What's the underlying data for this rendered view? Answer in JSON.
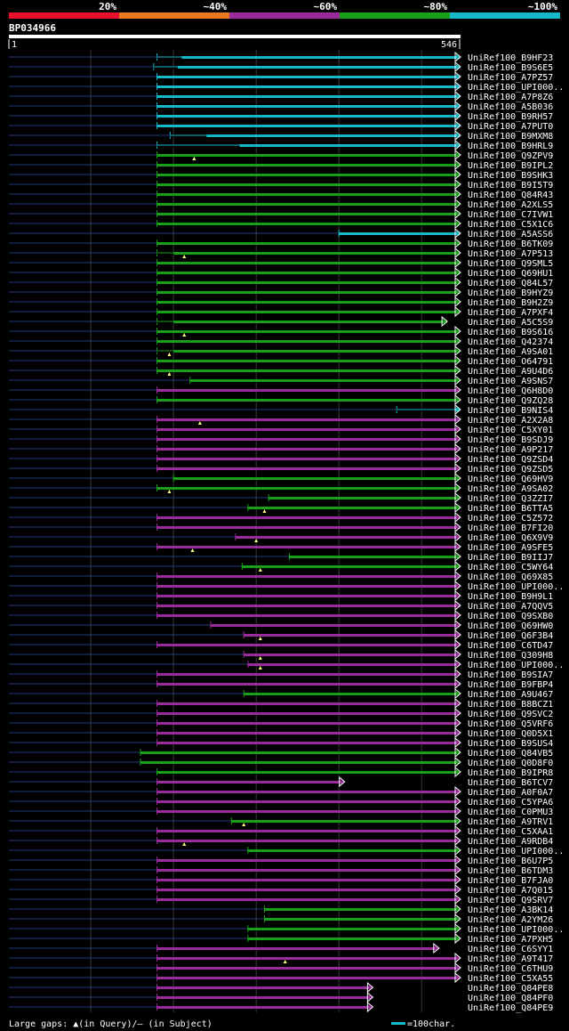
{
  "query": {
    "name": "BP034966",
    "start": "1",
    "end": "546",
    "length": 546
  },
  "scale_bar": [
    {
      "label": "20%",
      "color": "#e8112d"
    },
    {
      "label": "~40%",
      "color": "#e87722"
    },
    {
      "label": "~60%",
      "color": "#9b2a9b"
    },
    {
      "label": "~80%",
      "color": "#18a018"
    },
    {
      "label": "~100%",
      "color": "#16b8c8"
    }
  ],
  "colors": {
    "query_line": "#ffffff",
    "gap_line": "#1f3a7a",
    "grid": "#3a3a3a",
    "marker": "#ffff88",
    "arrow": "#ffffff"
  },
  "footer": {
    "legend_text": "Large gaps: ▲(in Query)/— (in Subject)",
    "scale_text": "=100char.",
    "scale_color": "#16b8c8"
  },
  "chart_data": {
    "type": "alignment-overview",
    "x_range": [
      1,
      546
    ],
    "hits": [
      {
        "name": "UniRef100_B9HF23",
        "start": 180,
        "end": 546,
        "color": "#16b8c8",
        "thin": [
          [
            180,
            210
          ]
        ],
        "marker": null,
        "arrow": true
      },
      {
        "name": "UniRef100_B9S6E5",
        "start": 176,
        "end": 546,
        "color": "#16b8c8",
        "thin": [
          [
            176,
            205
          ]
        ],
        "marker": null,
        "arrow": true
      },
      {
        "name": "UniRef100_A7PZ57",
        "start": 180,
        "end": 546,
        "color": "#16b8c8",
        "thin": [],
        "marker": null,
        "arrow": true
      },
      {
        "name": "UniRef100_UPI000..",
        "start": 180,
        "end": 546,
        "color": "#16b8c8",
        "thin": [],
        "marker": null,
        "arrow": true
      },
      {
        "name": "UniRef100_A7P8Z6",
        "start": 180,
        "end": 546,
        "color": "#16b8c8",
        "thin": [],
        "marker": null,
        "arrow": true
      },
      {
        "name": "UniRef100_A5B036",
        "start": 180,
        "end": 546,
        "color": "#16b8c8",
        "thin": [],
        "marker": null,
        "arrow": true
      },
      {
        "name": "UniRef100_B9RH57",
        "start": 180,
        "end": 546,
        "color": "#16b8c8",
        "thin": [],
        "marker": null,
        "arrow": true
      },
      {
        "name": "UniRef100_A7PUT0",
        "start": 180,
        "end": 546,
        "color": "#16b8c8",
        "thin": [],
        "marker": null,
        "arrow": true
      },
      {
        "name": "UniRef100_B9MXM8",
        "start": 196,
        "end": 546,
        "color": "#16b8c8",
        "thin": [
          [
            196,
            240
          ]
        ],
        "marker": null,
        "arrow": true
      },
      {
        "name": "UniRef100_B9HRL9",
        "start": 180,
        "end": 546,
        "color": "#16b8c8",
        "thin": [
          [
            180,
            280
          ]
        ],
        "marker": null,
        "arrow": true
      },
      {
        "name": "UniRef100_Q9ZPV9",
        "start": 180,
        "end": 546,
        "color": "#18a018",
        "thin": [],
        "marker": 225,
        "arrow": true
      },
      {
        "name": "UniRef100_B9IPL2",
        "start": 180,
        "end": 546,
        "color": "#18a018",
        "thin": [],
        "marker": null,
        "arrow": true
      },
      {
        "name": "UniRef100_B9SHK3",
        "start": 180,
        "end": 546,
        "color": "#18a018",
        "thin": [],
        "marker": null,
        "arrow": true
      },
      {
        "name": "UniRef100_B9I5T9",
        "start": 180,
        "end": 546,
        "color": "#18a018",
        "thin": [],
        "marker": null,
        "arrow": true
      },
      {
        "name": "UniRef100_Q84R43",
        "start": 180,
        "end": 546,
        "color": "#18a018",
        "thin": [],
        "marker": null,
        "arrow": true
      },
      {
        "name": "UniRef100_A2XLS5",
        "start": 180,
        "end": 546,
        "color": "#18a018",
        "thin": [],
        "marker": null,
        "arrow": true
      },
      {
        "name": "UniRef100_C7IVW1",
        "start": 180,
        "end": 546,
        "color": "#18a018",
        "thin": [],
        "marker": null,
        "arrow": true
      },
      {
        "name": "UniRef100_C5X1C6",
        "start": 180,
        "end": 546,
        "color": "#18a018",
        "thin": [],
        "marker": null,
        "arrow": true
      },
      {
        "name": "UniRef100_A5ASS6",
        "start": 400,
        "end": 546,
        "color": "#16b8c8",
        "thin": [],
        "marker": null,
        "arrow": true
      },
      {
        "name": "UniRef100_B6TK09",
        "start": 180,
        "end": 546,
        "color": "#18a018",
        "thin": [],
        "marker": null,
        "arrow": true
      },
      {
        "name": "UniRef100_A7P513",
        "start": 180,
        "end": 546,
        "color": "#18a018",
        "thin": [
          [
            180,
            200
          ]
        ],
        "marker": 213,
        "arrow": true
      },
      {
        "name": "UniRef100_Q9SML5",
        "start": 180,
        "end": 546,
        "color": "#18a018",
        "thin": [],
        "marker": null,
        "arrow": true
      },
      {
        "name": "UniRef100_Q69HU1",
        "start": 180,
        "end": 546,
        "color": "#18a018",
        "thin": [],
        "marker": null,
        "arrow": true
      },
      {
        "name": "UniRef100_Q84L57",
        "start": 180,
        "end": 546,
        "color": "#18a018",
        "thin": [],
        "marker": null,
        "arrow": true
      },
      {
        "name": "UniRef100_B9HYZ9",
        "start": 180,
        "end": 546,
        "color": "#18a018",
        "thin": [],
        "marker": null,
        "arrow": true
      },
      {
        "name": "UniRef100_B9H2Z9",
        "start": 180,
        "end": 546,
        "color": "#18a018",
        "thin": [],
        "marker": null,
        "arrow": true
      },
      {
        "name": "UniRef100_A7PXF4",
        "start": 180,
        "end": 546,
        "color": "#18a018",
        "thin": [],
        "marker": null,
        "arrow": true
      },
      {
        "name": "UniRef100_A5C5S9",
        "start": 180,
        "end": 530,
        "color": "#18a018",
        "thin": [
          [
            180,
            200
          ]
        ],
        "marker": null,
        "arrow": true
      },
      {
        "name": "UniRef100_B9S616",
        "start": 180,
        "end": 546,
        "color": "#18a018",
        "thin": [],
        "marker": 213,
        "arrow": true
      },
      {
        "name": "UniRef100_Q42374",
        "start": 180,
        "end": 546,
        "color": "#18a018",
        "thin": [],
        "marker": null,
        "arrow": true
      },
      {
        "name": "UniRef100_A9SA01",
        "start": 180,
        "end": 546,
        "color": "#18a018",
        "thin": [
          [
            180,
            200
          ]
        ],
        "marker": 195,
        "arrow": true
      },
      {
        "name": "UniRef100_O64791",
        "start": 180,
        "end": 546,
        "color": "#18a018",
        "thin": [],
        "marker": null,
        "arrow": true
      },
      {
        "name": "UniRef100_A9U4D6",
        "start": 180,
        "end": 546,
        "color": "#18a018",
        "thin": [],
        "marker": 195,
        "arrow": true
      },
      {
        "name": "UniRef100_A9SNS7",
        "start": 220,
        "end": 546,
        "color": "#18a018",
        "thin": [],
        "marker": null,
        "arrow": true
      },
      {
        "name": "UniRef100_Q6H8D0",
        "start": 180,
        "end": 546,
        "color": "#9b2a9b",
        "thin": [],
        "marker": null,
        "arrow": true
      },
      {
        "name": "UniRef100_Q9ZQ28",
        "start": 180,
        "end": 546,
        "color": "#18a018",
        "thin": [],
        "marker": null,
        "arrow": true
      },
      {
        "name": "UniRef100_B9NIS4",
        "start": 470,
        "end": 546,
        "color": "#16b8c8",
        "thin": [
          [
            470,
            540
          ]
        ],
        "marker": null,
        "arrow": true
      },
      {
        "name": "UniRef100_A2X2A8",
        "start": 180,
        "end": 546,
        "color": "#9b2a9b",
        "thin": [],
        "marker": 232,
        "arrow": true
      },
      {
        "name": "UniRef100_C5XY01",
        "start": 180,
        "end": 546,
        "color": "#9b2a9b",
        "thin": [],
        "marker": null,
        "arrow": true
      },
      {
        "name": "UniRef100_B9SDJ9",
        "start": 180,
        "end": 546,
        "color": "#9b2a9b",
        "thin": [],
        "marker": null,
        "arrow": true
      },
      {
        "name": "UniRef100_A9P217",
        "start": 180,
        "end": 546,
        "color": "#9b2a9b",
        "thin": [],
        "marker": null,
        "arrow": true
      },
      {
        "name": "UniRef100_Q9ZSD4",
        "start": 180,
        "end": 546,
        "color": "#9b2a9b",
        "thin": [],
        "marker": null,
        "arrow": true
      },
      {
        "name": "UniRef100_Q9ZSD5",
        "start": 180,
        "end": 546,
        "color": "#9b2a9b",
        "thin": [],
        "marker": null,
        "arrow": true
      },
      {
        "name": "UniRef100_Q69HV9",
        "start": 200,
        "end": 546,
        "color": "#18a018",
        "thin": [],
        "marker": null,
        "arrow": true
      },
      {
        "name": "UniRef100_A9SA02",
        "start": 180,
        "end": 546,
        "color": "#18a018",
        "thin": [],
        "marker": 195,
        "arrow": true
      },
      {
        "name": "UniRef100_Q3ZZI7",
        "start": 315,
        "end": 546,
        "color": "#18a018",
        "thin": [],
        "marker": null,
        "arrow": true
      },
      {
        "name": "UniRef100_B6TTA5",
        "start": 290,
        "end": 546,
        "color": "#18a018",
        "thin": [],
        "marker": 310,
        "arrow": true
      },
      {
        "name": "UniRef100_C5Z572",
        "start": 180,
        "end": 546,
        "color": "#9b2a9b",
        "thin": [],
        "marker": null,
        "arrow": true
      },
      {
        "name": "UniRef100_B7FI20",
        "start": 180,
        "end": 546,
        "color": "#9b2a9b",
        "thin": [],
        "marker": null,
        "arrow": true
      },
      {
        "name": "UniRef100_Q6X9V9",
        "start": 275,
        "end": 546,
        "color": "#9b2a9b",
        "thin": [],
        "marker": 300,
        "arrow": true
      },
      {
        "name": "UniRef100_A9SFE5",
        "start": 180,
        "end": 546,
        "color": "#9b2a9b",
        "thin": [],
        "marker": 223,
        "arrow": true
      },
      {
        "name": "UniRef100_B9IIJ7",
        "start": 340,
        "end": 546,
        "color": "#18a018",
        "thin": [],
        "marker": null,
        "arrow": true
      },
      {
        "name": "UniRef100_C5WY64",
        "start": 283,
        "end": 546,
        "color": "#18a018",
        "thin": [],
        "marker": 305,
        "arrow": true
      },
      {
        "name": "UniRef100_Q69X85",
        "start": 180,
        "end": 546,
        "color": "#9b2a9b",
        "thin": [],
        "marker": null,
        "arrow": true
      },
      {
        "name": "UniRef100_UPI000..",
        "start": 180,
        "end": 546,
        "color": "#9b2a9b",
        "thin": [],
        "marker": null,
        "arrow": true
      },
      {
        "name": "UniRef100_B9H9L1",
        "start": 180,
        "end": 546,
        "color": "#9b2a9b",
        "thin": [],
        "marker": null,
        "arrow": true
      },
      {
        "name": "UniRef100_A7QQV5",
        "start": 180,
        "end": 546,
        "color": "#9b2a9b",
        "thin": [],
        "marker": null,
        "arrow": true
      },
      {
        "name": "UniRef100_Q9SXB0",
        "start": 180,
        "end": 546,
        "color": "#9b2a9b",
        "thin": [],
        "marker": null,
        "arrow": true
      },
      {
        "name": "UniRef100_Q69HW0",
        "start": 245,
        "end": 546,
        "color": "#9b2a9b",
        "thin": [],
        "marker": null,
        "arrow": true
      },
      {
        "name": "UniRef100_Q6F3B4",
        "start": 285,
        "end": 546,
        "color": "#9b2a9b",
        "thin": [],
        "marker": 305,
        "arrow": true
      },
      {
        "name": "UniRef100_C6TD47",
        "start": 180,
        "end": 546,
        "color": "#9b2a9b",
        "thin": [],
        "marker": null,
        "arrow": true
      },
      {
        "name": "UniRef100_Q309H8",
        "start": 285,
        "end": 546,
        "color": "#9b2a9b",
        "thin": [],
        "marker": 305,
        "arrow": true
      },
      {
        "name": "UniRef100_UPI000..",
        "start": 290,
        "end": 546,
        "color": "#9b2a9b",
        "thin": [],
        "marker": 305,
        "arrow": true
      },
      {
        "name": "UniRef100_B9SIA7",
        "start": 180,
        "end": 546,
        "color": "#9b2a9b",
        "thin": [],
        "marker": null,
        "arrow": true
      },
      {
        "name": "UniRef100_B9FBP4",
        "start": 180,
        "end": 546,
        "color": "#9b2a9b",
        "thin": [],
        "marker": null,
        "arrow": true
      },
      {
        "name": "UniRef100_A9U467",
        "start": 285,
        "end": 546,
        "color": "#18a018",
        "thin": [],
        "marker": null,
        "arrow": true
      },
      {
        "name": "UniRef100_B8BCZ1",
        "start": 180,
        "end": 546,
        "color": "#9b2a9b",
        "thin": [],
        "marker": null,
        "arrow": true
      },
      {
        "name": "UniRef100_Q9SVC2",
        "start": 180,
        "end": 546,
        "color": "#9b2a9b",
        "thin": [],
        "marker": null,
        "arrow": true
      },
      {
        "name": "UniRef100_Q5VRF6",
        "start": 180,
        "end": 546,
        "color": "#9b2a9b",
        "thin": [],
        "marker": null,
        "arrow": true
      },
      {
        "name": "UniRef100_Q0D5X1",
        "start": 180,
        "end": 546,
        "color": "#9b2a9b",
        "thin": [],
        "marker": null,
        "arrow": true
      },
      {
        "name": "UniRef100_B9SUS4",
        "start": 180,
        "end": 546,
        "color": "#9b2a9b",
        "thin": [],
        "marker": null,
        "arrow": true
      },
      {
        "name": "UniRef100_Q84VB5",
        "start": 160,
        "end": 546,
        "color": "#18a018",
        "thin": [],
        "marker": null,
        "arrow": true
      },
      {
        "name": "UniRef100_Q0D8F0",
        "start": 160,
        "end": 546,
        "color": "#18a018",
        "thin": [],
        "marker": null,
        "arrow": true
      },
      {
        "name": "UniRef100_B9IPR8",
        "start": 180,
        "end": 546,
        "color": "#18a018",
        "thin": [],
        "marker": null,
        "arrow": true
      },
      {
        "name": "UniRef100_B6TCV7",
        "start": 180,
        "end": 406,
        "color": "#9b2a9b",
        "thin": [],
        "marker": null,
        "arrow": true
      },
      {
        "name": "UniRef100_A0F0A7",
        "start": 180,
        "end": 546,
        "color": "#9b2a9b",
        "thin": [],
        "marker": null,
        "arrow": true
      },
      {
        "name": "UniRef100_C5YPA6",
        "start": 180,
        "end": 546,
        "color": "#9b2a9b",
        "thin": [],
        "marker": null,
        "arrow": true
      },
      {
        "name": "UniRef100_C0PMU3",
        "start": 180,
        "end": 546,
        "color": "#9b2a9b",
        "thin": [],
        "marker": null,
        "arrow": true
      },
      {
        "name": "UniRef100_A9TRV1",
        "start": 270,
        "end": 546,
        "color": "#18a018",
        "thin": [],
        "marker": 285,
        "arrow": true
      },
      {
        "name": "UniRef100_C5XAA1",
        "start": 180,
        "end": 546,
        "color": "#9b2a9b",
        "thin": [],
        "marker": null,
        "arrow": true
      },
      {
        "name": "UniRef100_A9RDB4",
        "start": 180,
        "end": 546,
        "color": "#9b2a9b",
        "thin": [],
        "marker": 213,
        "arrow": true
      },
      {
        "name": "UniRef100_UPI000..",
        "start": 290,
        "end": 546,
        "color": "#18a018",
        "thin": [],
        "marker": null,
        "arrow": true
      },
      {
        "name": "UniRef100_B6U7P5",
        "start": 180,
        "end": 546,
        "color": "#9b2a9b",
        "thin": [],
        "marker": null,
        "arrow": true
      },
      {
        "name": "UniRef100_B6TDM3",
        "start": 180,
        "end": 546,
        "color": "#9b2a9b",
        "thin": [],
        "marker": null,
        "arrow": true
      },
      {
        "name": "UniRef100_B7FJA0",
        "start": 180,
        "end": 546,
        "color": "#9b2a9b",
        "thin": [],
        "marker": null,
        "arrow": true
      },
      {
        "name": "UniRef100_A7Q015",
        "start": 180,
        "end": 546,
        "color": "#9b2a9b",
        "thin": [],
        "marker": null,
        "arrow": true
      },
      {
        "name": "UniRef100_Q9SRV7",
        "start": 180,
        "end": 546,
        "color": "#9b2a9b",
        "thin": [],
        "marker": null,
        "arrow": true
      },
      {
        "name": "UniRef100_A3BK14",
        "start": 310,
        "end": 546,
        "color": "#18a018",
        "thin": [],
        "marker": null,
        "arrow": true
      },
      {
        "name": "UniRef100_A2YM26",
        "start": 310,
        "end": 546,
        "color": "#18a018",
        "thin": [],
        "marker": null,
        "arrow": true
      },
      {
        "name": "UniRef100_UPI000..",
        "start": 290,
        "end": 546,
        "color": "#18a018",
        "thin": [],
        "marker": null,
        "arrow": true
      },
      {
        "name": "UniRef100_A7PXH5",
        "start": 290,
        "end": 546,
        "color": "#18a018",
        "thin": [],
        "marker": null,
        "arrow": true
      },
      {
        "name": "UniRef100_C6SYY1",
        "start": 180,
        "end": 520,
        "color": "#9b2a9b",
        "thin": [],
        "marker": null,
        "arrow": true
      },
      {
        "name": "UniRef100_A9T417",
        "start": 180,
        "end": 546,
        "color": "#9b2a9b",
        "thin": [],
        "marker": 335,
        "arrow": true
      },
      {
        "name": "UniRef100_C6THU9",
        "start": 180,
        "end": 546,
        "color": "#9b2a9b",
        "thin": [],
        "marker": null,
        "arrow": true
      },
      {
        "name": "UniRef100_C5XA55",
        "start": 180,
        "end": 546,
        "color": "#9b2a9b",
        "thin": [],
        "marker": null,
        "arrow": true
      },
      {
        "name": "UniRef100_Q84PE8",
        "start": 180,
        "end": 440,
        "color": "#9b2a9b",
        "thin": [],
        "marker": null,
        "arrow": true
      },
      {
        "name": "UniRef100_Q84PF0",
        "start": 180,
        "end": 440,
        "color": "#9b2a9b",
        "thin": [],
        "marker": null,
        "arrow": true
      },
      {
        "name": "UniRef100_Q84PE9",
        "start": 180,
        "end": 440,
        "color": "#9b2a9b",
        "thin": [],
        "marker": null,
        "arrow": true
      }
    ]
  }
}
